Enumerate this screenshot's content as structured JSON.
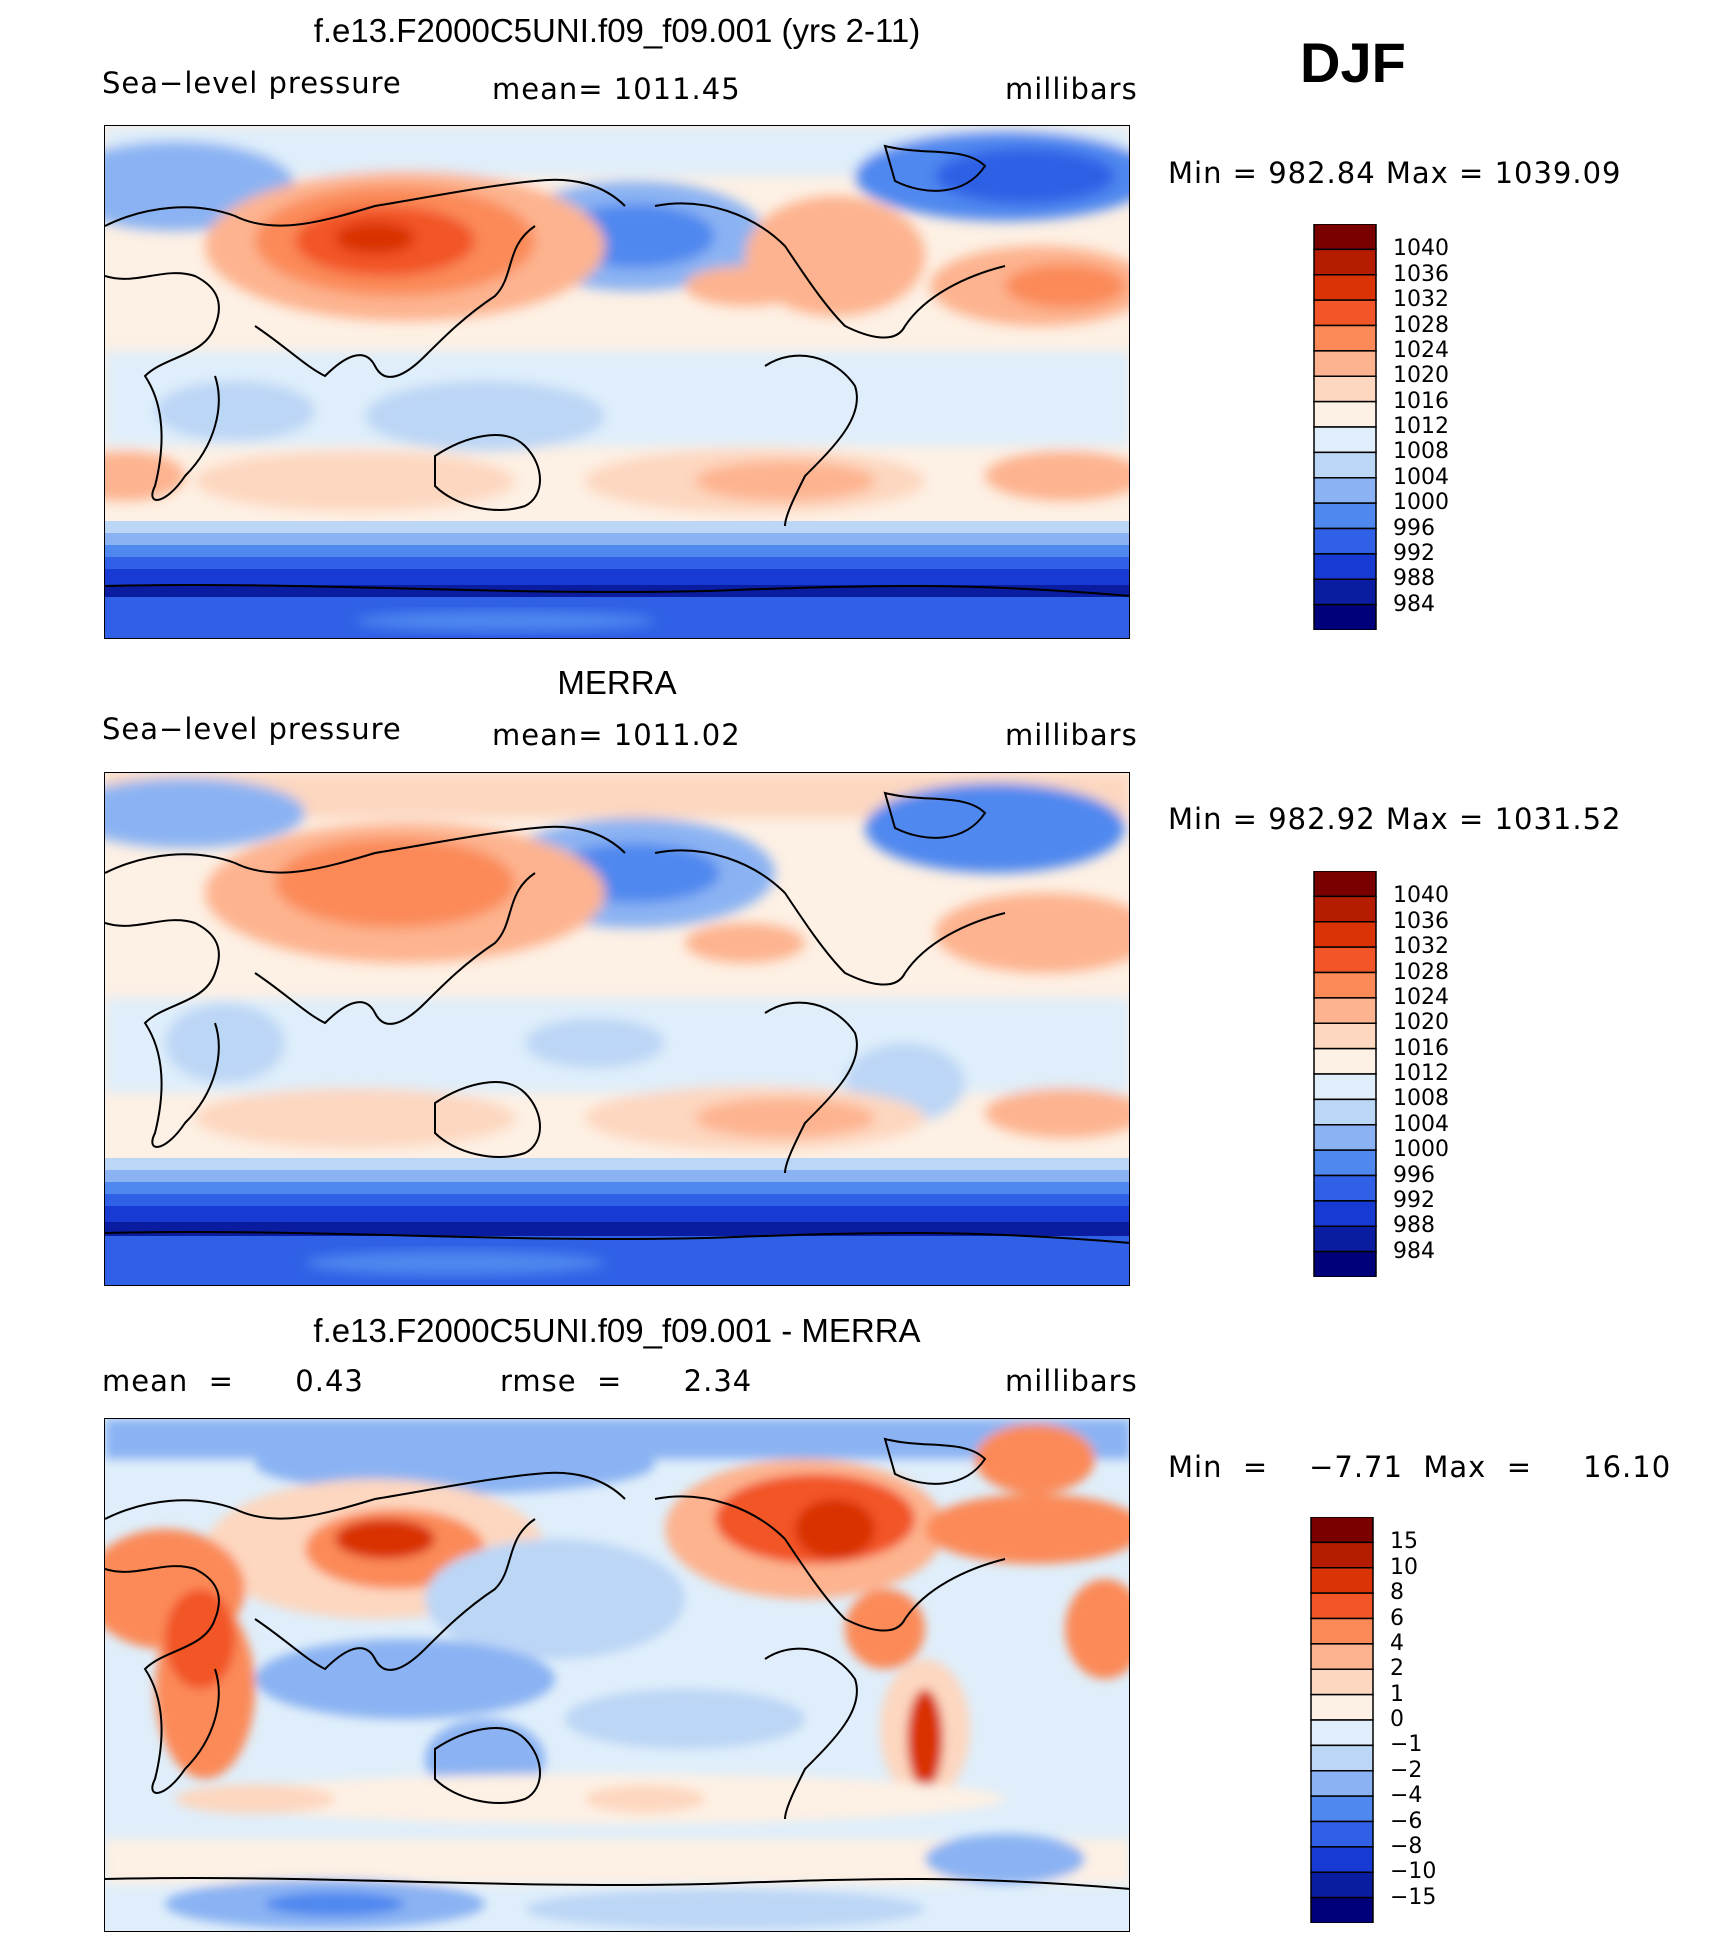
{
  "season": "DJF",
  "palette": {
    "levels14": [
      "#7a0000",
      "#b61c00",
      "#d93306",
      "#f25528",
      "#fb8a58",
      "#fdb38f",
      "#fdd7c0",
      "#fdf0e4",
      "#dfeefa",
      "#bcd6f6",
      "#8bb3f3",
      "#4f88ef",
      "#2f60e6",
      "#173ad2",
      "#0a1c9f",
      "#00007a"
    ],
    "diff16": [
      "#7a0000",
      "#b61c00",
      "#d93306",
      "#f25528",
      "#fb8a58",
      "#fdb38f",
      "#fdd7c0",
      "#fdf0e4",
      "#dfeefa",
      "#bcd6f6",
      "#8bb3f3",
      "#4f88ef",
      "#2f60e6",
      "#173ad2",
      "#0a1c9f",
      "#00007a"
    ]
  },
  "panels": [
    {
      "title": "f.e13.F2000C5UNI.f09_f09.001 (yrs 2-11)",
      "left_label": "Sea−level pressure",
      "center_label": "mean=  1011.45",
      "units": "millibars",
      "minmax": "Min  =  982.84  Max  =  1039.09",
      "colorbar_labels": [
        "1040",
        "1036",
        "1032",
        "1028",
        "1024",
        "1020",
        "1016",
        "1012",
        "1008",
        "1004",
        "1000",
        "996",
        "992",
        "988",
        "984"
      ]
    },
    {
      "title": "MERRA",
      "left_label": "Sea−level pressure",
      "center_label": "mean=  1011.02",
      "units": "millibars",
      "minmax": "Min  =  982.92  Max  =  1031.52",
      "colorbar_labels": [
        "1040",
        "1036",
        "1032",
        "1028",
        "1024",
        "1020",
        "1016",
        "1012",
        "1008",
        "1004",
        "1000",
        "996",
        "992",
        "988",
        "984"
      ]
    },
    {
      "title": "f.e13.F2000C5UNI.f09_f09.001 - MERRA",
      "left_label": "mean  =      0.43",
      "center_label": "rmse  =      2.34",
      "units": "millibars",
      "minmax": "Min  =    −7.71  Max  =     16.10",
      "colorbar_labels": [
        "15",
        "10",
        "8",
        "6",
        "4",
        "2",
        "1",
        "0",
        "−1",
        "−2",
        "−4",
        "−6",
        "−8",
        "−10",
        "−15"
      ]
    }
  ],
  "chart_data": [
    {
      "type": "heatmap",
      "title": "f.e13.F2000C5UNI.f09_f09.001 (yrs 2-11)",
      "variable": "Sea−level pressure",
      "units": "millibars",
      "mean": 1011.45,
      "min": 982.84,
      "max": 1039.09,
      "contour_levels": [
        984,
        988,
        992,
        996,
        1000,
        1004,
        1008,
        1012,
        1016,
        1020,
        1024,
        1028,
        1032,
        1036,
        1040
      ],
      "projection": "cylindrical equidistant, centered 180"
    },
    {
      "type": "heatmap",
      "title": "MERRA",
      "variable": "Sea−level pressure",
      "units": "millibars",
      "mean": 1011.02,
      "min": 982.92,
      "max": 1031.52,
      "contour_levels": [
        984,
        988,
        992,
        996,
        1000,
        1004,
        1008,
        1012,
        1016,
        1020,
        1024,
        1028,
        1032,
        1036,
        1040
      ],
      "projection": "cylindrical equidistant, centered 180"
    },
    {
      "type": "heatmap",
      "title": "f.e13.F2000C5UNI.f09_f09.001 - MERRA",
      "units": "millibars",
      "mean": 0.43,
      "rmse": 2.34,
      "min": -7.71,
      "max": 16.1,
      "contour_levels": [
        -15,
        -10,
        -8,
        -6,
        -4,
        -2,
        -1,
        0,
        1,
        2,
        4,
        6,
        8,
        10,
        15
      ],
      "projection": "cylindrical equidistant, centered 180"
    }
  ]
}
